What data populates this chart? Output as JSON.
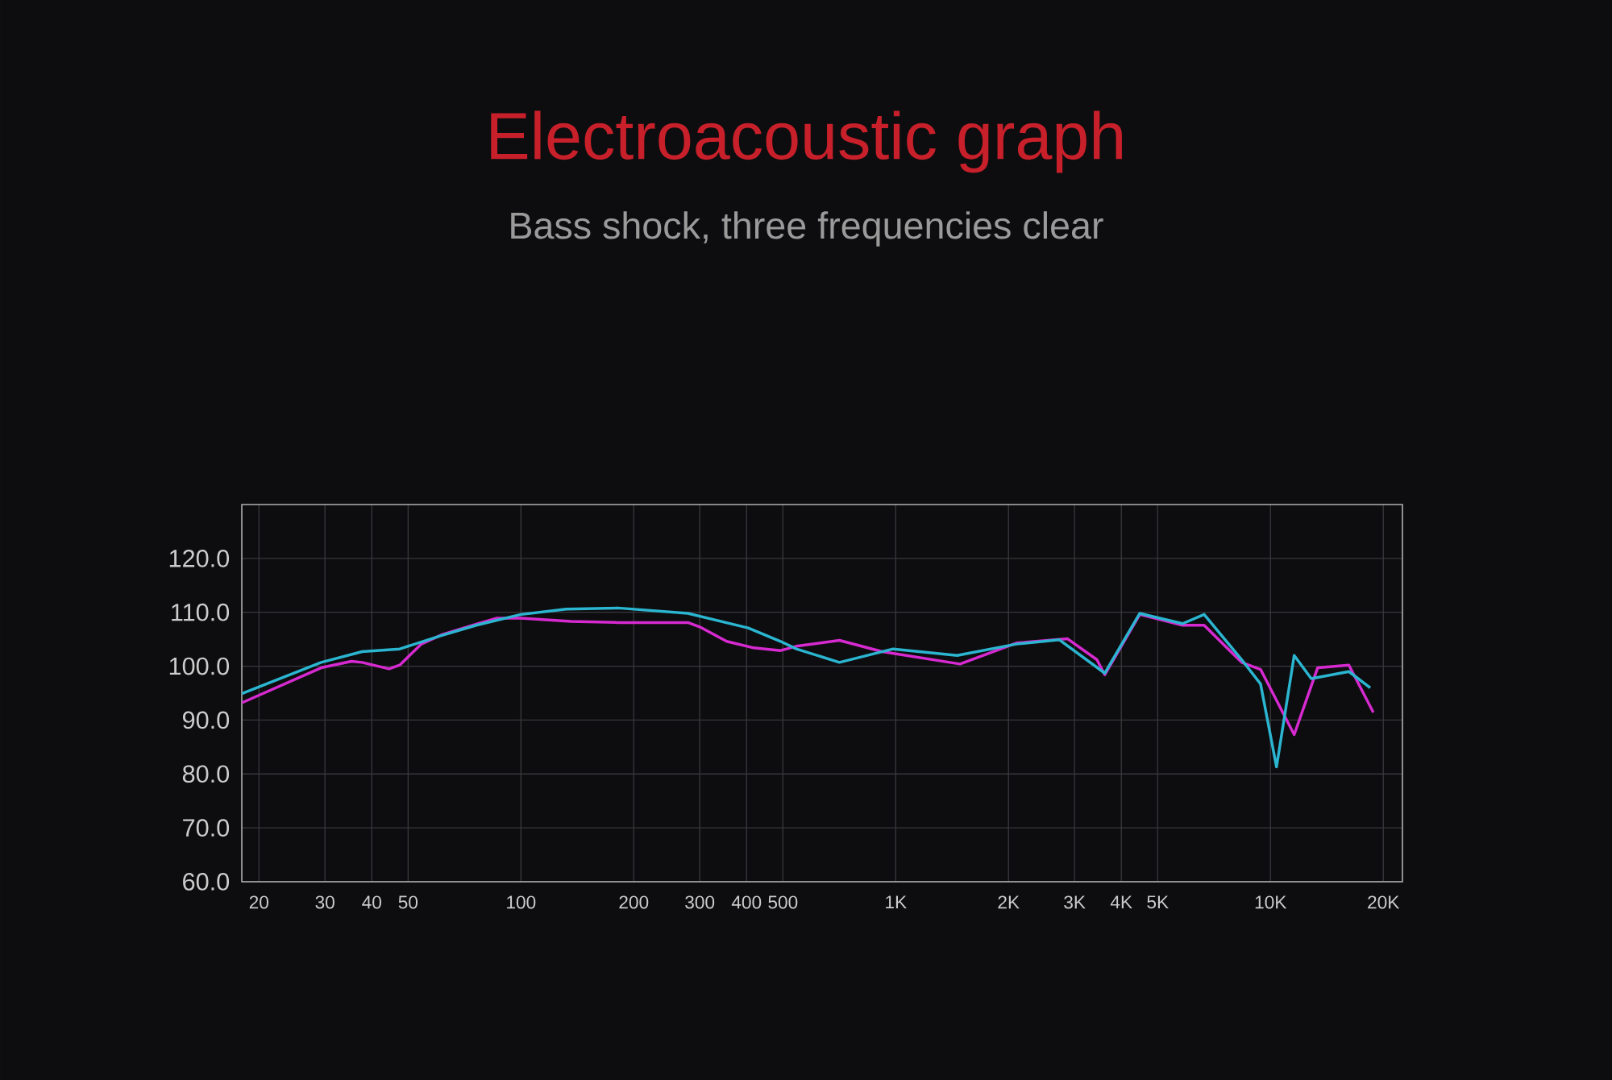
{
  "chart_data": {
    "type": "line",
    "title": "Electroacoustic graph",
    "subtitle": "Bass shock, three frequencies clear",
    "log": "x",
    "grid": true,
    "xlim": [
      18,
      22500
    ],
    "ylim": [
      60,
      130
    ],
    "xticks": [
      20,
      30,
      40,
      50,
      100,
      200,
      300,
      400,
      500,
      {
        "value": 1000,
        "label": "1K"
      },
      {
        "value": 2000,
        "label": "2K"
      },
      {
        "value": 3000,
        "label": "3K"
      },
      {
        "value": 4000,
        "label": "4K"
      },
      {
        "value": 5000,
        "label": "5K"
      },
      {
        "value": 10000,
        "label": "10K"
      },
      {
        "value": 20000,
        "label": "20K"
      }
    ],
    "yticks": [
      {
        "value": 60,
        "label": "60.0"
      },
      {
        "value": 70,
        "label": "70.0"
      },
      {
        "value": 80,
        "label": "80.0"
      },
      {
        "value": 90,
        "label": "90.0"
      },
      {
        "value": 100,
        "label": "100.0"
      },
      {
        "value": 110,
        "label": "110.0"
      },
      {
        "value": 120,
        "label": "120.0"
      }
    ],
    "series": [
      {
        "color": "#d62ad0",
        "x": [
          18,
          29.3,
          35.3,
          37.7,
          44.5,
          47.5,
          54.2,
          61.8,
          76,
          85.9,
          100,
          136,
          182,
          279,
          300,
          354,
          418,
          493,
          543,
          708,
          920,
          1485,
          2099,
          2870,
          3443,
          3614,
          4479,
          5830,
          6654,
          8380,
          9410,
          11570,
          13360,
          16190,
          18820
        ],
        "values": [
          93.2,
          99.7,
          100.9,
          100.7,
          99.5,
          100.2,
          104.1,
          105.9,
          107.8,
          108.9,
          108.9,
          108.3,
          108.1,
          108.1,
          107.3,
          104.6,
          103.4,
          102.9,
          103.7,
          104.8,
          102.7,
          100.4,
          104.3,
          105.1,
          101.2,
          98.4,
          109.6,
          107.6,
          107.6,
          100.7,
          99.4,
          87.3,
          99.7,
          100.2,
          91.4
        ]
      },
      {
        "color": "#2bb5d0",
        "x": [
          18,
          29.3,
          37.7,
          47.5,
          60.8,
          76,
          100,
          132,
          182,
          279,
          404,
          493,
          543,
          708,
          984,
          1459,
          2099,
          2734,
          3614,
          4479,
          5830,
          6654,
          8380,
          9410,
          10380,
          11570,
          12850,
          16190,
          18460
        ],
        "values": [
          94.9,
          100.7,
          102.7,
          103.2,
          105.6,
          107.6,
          109.6,
          110.6,
          110.8,
          109.8,
          107.1,
          104.6,
          103.2,
          100.7,
          103.2,
          102.0,
          104.1,
          104.9,
          98.7,
          109.8,
          107.9,
          109.6,
          101.2,
          96.7,
          81.3,
          102.0,
          97.7,
          99.0,
          96.0
        ]
      }
    ]
  }
}
